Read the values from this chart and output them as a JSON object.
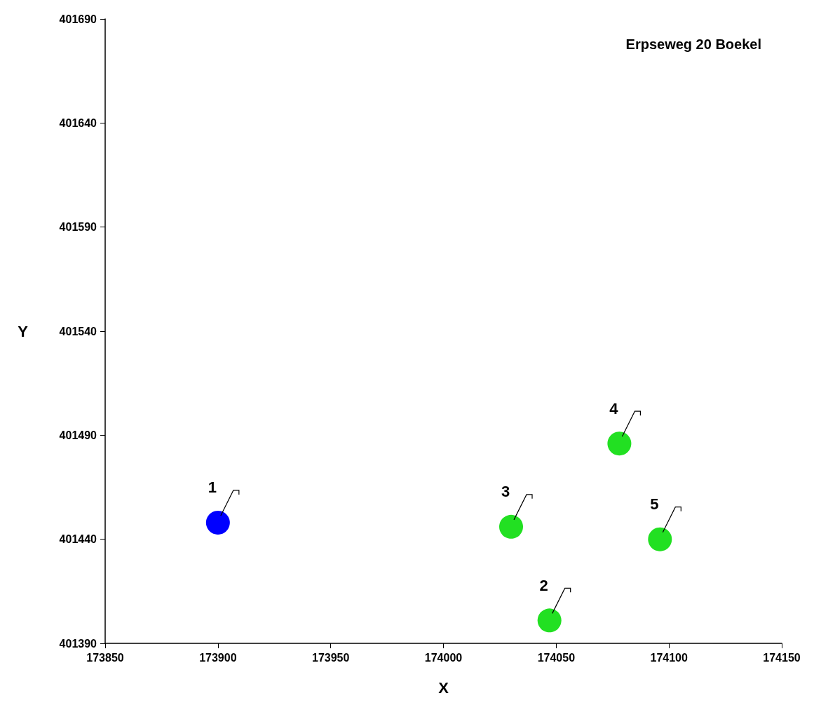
{
  "chart_data": {
    "type": "scatter",
    "title": "Erpseweg 20 Boekel",
    "xlabel": "X",
    "ylabel": "Y",
    "xlim": [
      173850,
      174150
    ],
    "xticks": [
      173850,
      173900,
      173950,
      174000,
      174050,
      174100,
      174150
    ],
    "ylim": [
      401390,
      401690
    ],
    "yticks": [
      401390,
      401440,
      401490,
      401540,
      401590,
      401640,
      401690
    ],
    "series": [
      {
        "color": "#0000ff",
        "x": [
          173900
        ],
        "values": [
          401448
        ]
      },
      {
        "color": "#22e022",
        "x": [
          174047,
          174030,
          174078,
          174096
        ],
        "values": [
          401401,
          401446,
          401486,
          401440
        ]
      }
    ],
    "annotations": [
      {
        "text": "1",
        "x": 173900,
        "y": 401448
      },
      {
        "text": "2",
        "x": 174047,
        "y": 401401
      },
      {
        "text": "3",
        "x": 174030,
        "y": 401446
      },
      {
        "text": "4",
        "x": 174078,
        "y": 401486
      },
      {
        "text": "5",
        "x": 174096,
        "y": 401440
      }
    ],
    "marker": "circle",
    "grid": false
  }
}
